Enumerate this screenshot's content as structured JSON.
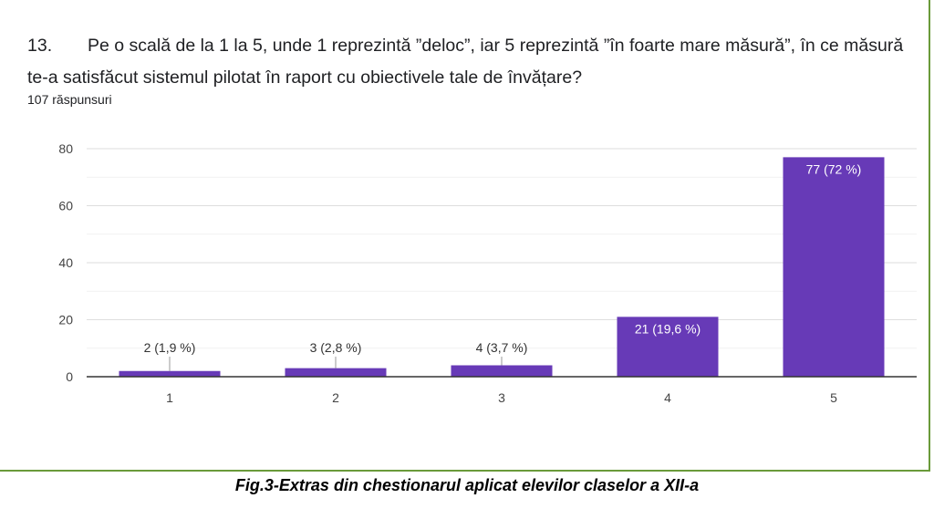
{
  "question": {
    "number": "13.",
    "text": "Pe o scală de la 1 la 5, unde 1 reprezintă ”deloc”, iar 5 reprezintă ”în foarte mare măsură”, în ce măsură te-a satisfăcut sistemul pilotat în raport cu obiectivele tale de învățare?",
    "responses": "107 răspunsuri"
  },
  "caption": "Fig.3-Extras din chestionarul aplicat elevilor claselor a XII-a",
  "chart_data": {
    "type": "bar",
    "categories": [
      "1",
      "2",
      "3",
      "4",
      "5"
    ],
    "values": [
      2,
      3,
      4,
      21,
      77
    ],
    "data_labels": [
      "2 (1,9 %)",
      "3 (2,8 %)",
      "4 (3,7 %)",
      "21 (19,6 %)",
      "77 (72 %)"
    ],
    "ylim": [
      0,
      80
    ],
    "yticks": [
      0,
      20,
      40,
      60,
      80
    ],
    "grid": true,
    "bar_color": "#673ab7",
    "title": "",
    "xlabel": "",
    "ylabel": ""
  }
}
